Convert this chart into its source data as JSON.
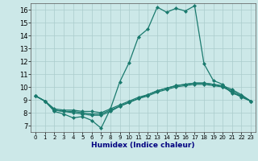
{
  "title": "",
  "xlabel": "Humidex (Indice chaleur)",
  "ylabel": "",
  "xlim": [
    -0.5,
    23.5
  ],
  "ylim": [
    6.5,
    16.5
  ],
  "xticks": [
    0,
    1,
    2,
    3,
    4,
    5,
    6,
    7,
    8,
    9,
    10,
    11,
    12,
    13,
    14,
    15,
    16,
    17,
    18,
    19,
    20,
    21,
    22,
    23
  ],
  "yticks": [
    7,
    8,
    9,
    10,
    11,
    12,
    13,
    14,
    15,
    16
  ],
  "bg_color": "#cce8e8",
  "grid_color": "#aacccc",
  "line_color": "#1a7a6e",
  "lines": [
    {
      "x": [
        0,
        1,
        2,
        3,
        4,
        5,
        6,
        7,
        8,
        9,
        10,
        11,
        12,
        13,
        14,
        15,
        16,
        17,
        18,
        19,
        20,
        21,
        22,
        23
      ],
      "y": [
        9.3,
        8.9,
        8.1,
        7.9,
        7.6,
        7.7,
        7.4,
        6.8,
        8.3,
        10.4,
        11.9,
        13.9,
        14.5,
        16.2,
        15.8,
        16.1,
        15.9,
        16.3,
        11.8,
        10.5,
        10.2,
        9.5,
        9.3,
        8.9
      ]
    },
    {
      "x": [
        0,
        1,
        2,
        3,
        4,
        5,
        6,
        7,
        8,
        9,
        10,
        11,
        12,
        13,
        14,
        15,
        16,
        17,
        18,
        19,
        20,
        21,
        22,
        23
      ],
      "y": [
        9.3,
        8.9,
        8.2,
        8.1,
        8.0,
        7.9,
        7.8,
        7.8,
        8.1,
        8.5,
        8.8,
        9.1,
        9.4,
        9.7,
        9.9,
        10.1,
        10.2,
        10.3,
        10.3,
        10.2,
        10.1,
        9.8,
        9.4,
        8.9
      ]
    },
    {
      "x": [
        0,
        1,
        2,
        3,
        4,
        5,
        6,
        7,
        8,
        9,
        10,
        11,
        12,
        13,
        14,
        15,
        16,
        17,
        18,
        19,
        20,
        21,
        22,
        23
      ],
      "y": [
        9.3,
        8.9,
        8.2,
        8.1,
        8.1,
        8.0,
        7.9,
        7.9,
        8.2,
        8.5,
        8.8,
        9.1,
        9.3,
        9.6,
        9.8,
        10.0,
        10.1,
        10.2,
        10.2,
        10.1,
        10.0,
        9.7,
        9.3,
        8.9
      ]
    },
    {
      "x": [
        0,
        1,
        2,
        3,
        4,
        5,
        6,
        7,
        8,
        9,
        10,
        11,
        12,
        13,
        14,
        15,
        16,
        17,
        18,
        19,
        20,
        21,
        22,
        23
      ],
      "y": [
        9.3,
        8.9,
        8.3,
        8.2,
        8.2,
        8.1,
        8.1,
        8.0,
        8.3,
        8.6,
        8.9,
        9.2,
        9.4,
        9.7,
        9.9,
        10.1,
        10.2,
        10.3,
        10.3,
        10.2,
        10.0,
        9.6,
        9.2,
        8.9
      ]
    }
  ]
}
